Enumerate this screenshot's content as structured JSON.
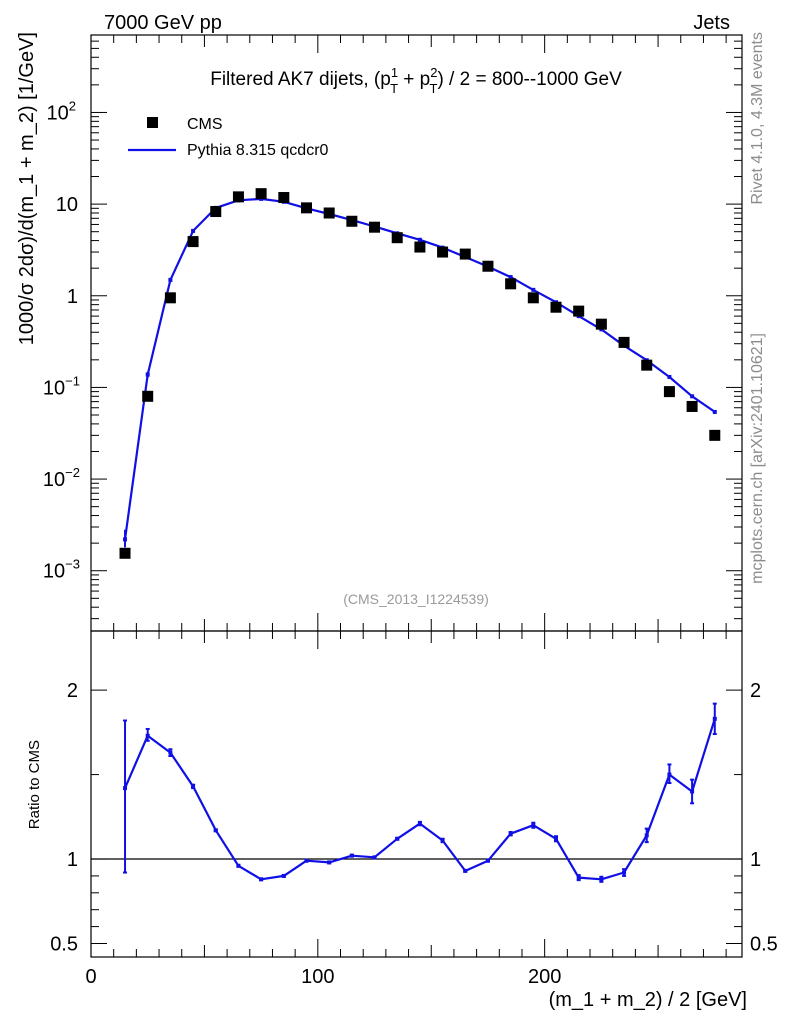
{
  "header": {
    "left": "7000 GeV pp",
    "right": "Jets"
  },
  "side_labels": {
    "top": "Rivet 4.1.0,  4.3M events",
    "bottom": "mcplots.cern.ch [arXiv:2401.10621]"
  },
  "colors": {
    "mc": "#1010e6",
    "data": "#000000",
    "side": "#8c8c8c"
  },
  "chart_data": [
    {
      "type": "scatter",
      "title": "Filtered AK7 dijets, (p_T^1 + p_T^2) / 2 = 800--1000 GeV",
      "title_main": "Filtered AK7 dijets, (p",
      "title_mid": " + p",
      "title_end": ") / 2 = 800--1000 GeV",
      "title_sup1": "1",
      "title_sup2": "2",
      "title_sub": "T",
      "ylabel": "1000/σ   2dσ)/d(m_1 + m_2) [1/GeV]",
      "yscale": "log",
      "ylim": [
        0.00022,
        700
      ],
      "xlim": [
        0,
        287
      ],
      "yticks": [
        {
          "v": 0.001,
          "base": "10",
          "exp": "−3"
        },
        {
          "v": 0.01,
          "base": "10",
          "exp": "−2"
        },
        {
          "v": 0.1,
          "base": "10",
          "exp": "−1"
        },
        {
          "v": 1,
          "base": "1",
          "exp": ""
        },
        {
          "v": 10,
          "base": "10",
          "exp": ""
        },
        {
          "v": 100,
          "base": "10",
          "exp": "2"
        }
      ],
      "watermark": "(CMS_2013_I1224539)",
      "legend_position": "top-left",
      "x": [
        15,
        25,
        35,
        45,
        55,
        65,
        75,
        85,
        95,
        105,
        115,
        125,
        135,
        145,
        155,
        165,
        175,
        185,
        195,
        205,
        215,
        225,
        235,
        245,
        255,
        265,
        275
      ],
      "series": [
        {
          "name": "CMS",
          "kind": "markers",
          "values": [
            0.00155,
            0.08,
            0.95,
            3.9,
            8.3,
            12.0,
            13.0,
            11.8,
            9.1,
            8.0,
            6.5,
            5.6,
            4.3,
            3.4,
            3.0,
            2.85,
            2.1,
            1.35,
            0.95,
            0.75,
            0.68,
            0.49,
            0.31,
            0.175,
            0.09,
            0.062,
            0.03
          ]
        },
        {
          "name": "Pythia 8.315 qcdcr0",
          "kind": "line",
          "values": [
            0.0022,
            0.138,
            1.49,
            5.1,
            9.1,
            11.0,
            11.4,
            10.6,
            9.0,
            7.8,
            6.7,
            5.7,
            4.8,
            4.08,
            3.35,
            2.65,
            2.08,
            1.6,
            1.16,
            0.85,
            0.6,
            0.43,
            0.285,
            0.198,
            0.13,
            0.08,
            0.054
          ],
          "err_low": [
            0.0018,
            0.128,
            0.0,
            0.0,
            0.0,
            0.0,
            0.0,
            0.0,
            0.0,
            0.0,
            0.0,
            0.0,
            0.0,
            0.0,
            0.0,
            0.0,
            0.0,
            0.0,
            0.0,
            0.0,
            0.0,
            0.0,
            0.0,
            0.0,
            0.0,
            0.0,
            0.0
          ],
          "err_high": [
            0.0028,
            0.148,
            0.0,
            0.0,
            0.0,
            0.0,
            0.0,
            0.0,
            0.0,
            0.0,
            0.0,
            0.0,
            0.0,
            0.0,
            0.0,
            0.0,
            0.0,
            0.0,
            0.0,
            0.0,
            0.0,
            0.0,
            0.0,
            0.0,
            0.0,
            0.0,
            0.0
          ]
        }
      ]
    },
    {
      "type": "line",
      "ylabel": "Ratio to CMS",
      "xlabel": "(m_1 + m_2) / 2 [GeV]",
      "ylim": [
        0.42,
        2.35
      ],
      "xlim": [
        0,
        287
      ],
      "xticks": [
        0,
        100,
        200
      ],
      "yticks": [
        {
          "v": 0.5,
          "label": "0.5"
        },
        {
          "v": 1,
          "label": "1"
        },
        {
          "v": 2,
          "label": "2"
        }
      ],
      "reference": 1,
      "x": [
        15,
        25,
        35,
        45,
        55,
        65,
        75,
        85,
        95,
        105,
        115,
        125,
        135,
        145,
        155,
        165,
        175,
        185,
        195,
        205,
        215,
        225,
        235,
        245,
        255,
        265,
        275
      ],
      "series": [
        {
          "name": "Pythia 8.315 qcdcr0 / CMS",
          "values": [
            1.42,
            1.73,
            1.63,
            1.43,
            1.17,
            0.96,
            0.88,
            0.9,
            0.99,
            0.98,
            1.02,
            1.01,
            1.12,
            1.21,
            1.11,
            0.93,
            0.99,
            1.15,
            1.2,
            1.12,
            0.89,
            0.88,
            0.92,
            1.14,
            1.5,
            1.4,
            1.83
          ],
          "err_low": [
            0.92,
            1.7,
            1.61,
            1.42,
            1.165,
            0.955,
            0.875,
            0.895,
            0.985,
            0.975,
            1.015,
            1.005,
            1.115,
            1.2,
            1.1,
            0.925,
            0.985,
            1.14,
            1.185,
            1.105,
            0.875,
            0.865,
            0.9,
            1.1,
            1.45,
            1.33,
            1.74
          ],
          "err_high": [
            1.82,
            1.77,
            1.65,
            1.44,
            1.175,
            0.965,
            0.885,
            0.905,
            0.995,
            0.985,
            1.025,
            1.015,
            1.125,
            1.22,
            1.12,
            0.935,
            0.995,
            1.16,
            1.215,
            1.135,
            0.905,
            0.895,
            0.94,
            1.18,
            1.56,
            1.47,
            1.92
          ]
        }
      ]
    }
  ]
}
